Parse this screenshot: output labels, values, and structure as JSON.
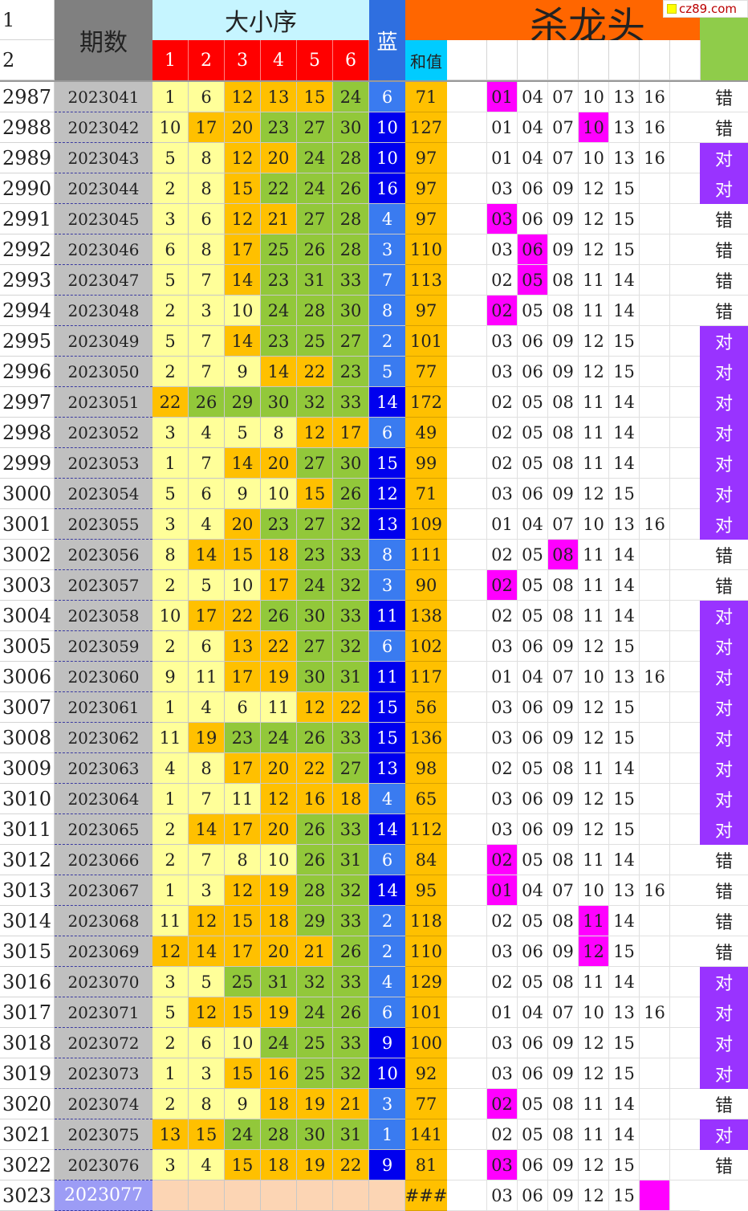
{
  "header": {
    "row1_label": "1",
    "row2_label": "2",
    "period_label": "期数",
    "red_group_label": "大小序",
    "red_positions": [
      "1",
      "2",
      "3",
      "4",
      "5",
      "6"
    ],
    "blue_label": "蓝",
    "sum_label": "和值",
    "kill_label": "杀龙头",
    "watermark": "cz89.com"
  },
  "colors": {
    "light_yellow": "#ffff99",
    "orange": "#ffc000",
    "green": "#92c83a",
    "blue_light": "#3a7bf0",
    "blue_dark": "#0000ee",
    "magenta": "#ff00ff",
    "purple": "#9933ff",
    "header_cyan": "#c6f5ff",
    "header_red": "#ff0000",
    "header_orange": "#ff6600",
    "header_green": "#8fcc4a"
  },
  "rows": [
    {
      "idx": "2987",
      "period": "2023041",
      "reds": [
        "1",
        "6",
        "12",
        "13",
        "15",
        "24"
      ],
      "bg": [
        "y",
        "y",
        "o",
        "o",
        "o",
        "g"
      ],
      "blue": "6",
      "bb": "l",
      "sum": "71",
      "kill": [
        "01",
        "04",
        "07",
        "10",
        "13",
        "16"
      ],
      "hl": [
        0
      ],
      "result": "错",
      "ok": false
    },
    {
      "idx": "2988",
      "period": "2023042",
      "reds": [
        "10",
        "17",
        "20",
        "23",
        "27",
        "30"
      ],
      "bg": [
        "y",
        "o",
        "o",
        "g",
        "g",
        "g"
      ],
      "blue": "10",
      "bb": "d",
      "sum": "127",
      "kill": [
        "01",
        "04",
        "07",
        "10",
        "13",
        "16"
      ],
      "hl": [
        3
      ],
      "result": "错",
      "ok": false
    },
    {
      "idx": "2989",
      "period": "2023043",
      "reds": [
        "5",
        "8",
        "12",
        "20",
        "24",
        "28"
      ],
      "bg": [
        "y",
        "y",
        "o",
        "o",
        "g",
        "g"
      ],
      "blue": "10",
      "bb": "d",
      "sum": "97",
      "kill": [
        "01",
        "04",
        "07",
        "10",
        "13",
        "16"
      ],
      "hl": [],
      "result": "对",
      "ok": true
    },
    {
      "idx": "2990",
      "period": "2023044",
      "reds": [
        "2",
        "8",
        "15",
        "22",
        "24",
        "26"
      ],
      "bg": [
        "y",
        "y",
        "o",
        "g",
        "g",
        "g"
      ],
      "blue": "16",
      "bb": "d",
      "sum": "97",
      "kill": [
        "03",
        "06",
        "09",
        "12",
        "15",
        ""
      ],
      "hl": [],
      "result": "对",
      "ok": true
    },
    {
      "idx": "2991",
      "period": "2023045",
      "reds": [
        "3",
        "6",
        "12",
        "21",
        "27",
        "28"
      ],
      "bg": [
        "y",
        "y",
        "o",
        "o",
        "g",
        "g"
      ],
      "blue": "4",
      "bb": "l",
      "sum": "97",
      "kill": [
        "03",
        "06",
        "09",
        "12",
        "15",
        ""
      ],
      "hl": [
        0
      ],
      "result": "错",
      "ok": false
    },
    {
      "idx": "2992",
      "period": "2023046",
      "reds": [
        "6",
        "8",
        "17",
        "25",
        "26",
        "28"
      ],
      "bg": [
        "y",
        "y",
        "o",
        "g",
        "g",
        "g"
      ],
      "blue": "3",
      "bb": "l",
      "sum": "110",
      "kill": [
        "03",
        "06",
        "09",
        "12",
        "15",
        ""
      ],
      "hl": [
        1
      ],
      "result": "错",
      "ok": false
    },
    {
      "idx": "2993",
      "period": "2023047",
      "reds": [
        "5",
        "7",
        "14",
        "23",
        "31",
        "33"
      ],
      "bg": [
        "y",
        "y",
        "o",
        "g",
        "g",
        "g"
      ],
      "blue": "7",
      "bb": "l",
      "sum": "113",
      "kill": [
        "02",
        "05",
        "08",
        "11",
        "14",
        ""
      ],
      "hl": [
        1
      ],
      "result": "错",
      "ok": false
    },
    {
      "idx": "2994",
      "period": "2023048",
      "reds": [
        "2",
        "3",
        "10",
        "24",
        "28",
        "30"
      ],
      "bg": [
        "y",
        "y",
        "y",
        "g",
        "g",
        "g"
      ],
      "blue": "8",
      "bb": "l",
      "sum": "97",
      "kill": [
        "02",
        "05",
        "08",
        "11",
        "14",
        ""
      ],
      "hl": [
        0
      ],
      "result": "错",
      "ok": false
    },
    {
      "idx": "2995",
      "period": "2023049",
      "reds": [
        "5",
        "7",
        "14",
        "23",
        "25",
        "27"
      ],
      "bg": [
        "y",
        "y",
        "o",
        "g",
        "g",
        "g"
      ],
      "blue": "2",
      "bb": "l",
      "sum": "101",
      "kill": [
        "03",
        "06",
        "09",
        "12",
        "15",
        ""
      ],
      "hl": [],
      "result": "对",
      "ok": true
    },
    {
      "idx": "2996",
      "period": "2023050",
      "reds": [
        "2",
        "7",
        "9",
        "14",
        "22",
        "23"
      ],
      "bg": [
        "y",
        "y",
        "y",
        "o",
        "o",
        "g"
      ],
      "blue": "5",
      "bb": "l",
      "sum": "77",
      "kill": [
        "03",
        "06",
        "09",
        "12",
        "15",
        ""
      ],
      "hl": [],
      "result": "对",
      "ok": true
    },
    {
      "idx": "2997",
      "period": "2023051",
      "reds": [
        "22",
        "26",
        "29",
        "30",
        "32",
        "33"
      ],
      "bg": [
        "o",
        "g",
        "g",
        "g",
        "g",
        "g"
      ],
      "blue": "14",
      "bb": "d",
      "sum": "172",
      "kill": [
        "02",
        "05",
        "08",
        "11",
        "14",
        ""
      ],
      "hl": [],
      "result": "对",
      "ok": true
    },
    {
      "idx": "2998",
      "period": "2023052",
      "reds": [
        "3",
        "4",
        "5",
        "8",
        "12",
        "17"
      ],
      "bg": [
        "y",
        "y",
        "y",
        "y",
        "o",
        "o"
      ],
      "blue": "6",
      "bb": "l",
      "sum": "49",
      "kill": [
        "02",
        "05",
        "08",
        "11",
        "14",
        ""
      ],
      "hl": [],
      "result": "对",
      "ok": true
    },
    {
      "idx": "2999",
      "period": "2023053",
      "reds": [
        "1",
        "7",
        "14",
        "20",
        "27",
        "30"
      ],
      "bg": [
        "y",
        "y",
        "o",
        "o",
        "g",
        "g"
      ],
      "blue": "15",
      "bb": "d",
      "sum": "99",
      "kill": [
        "02",
        "05",
        "08",
        "11",
        "14",
        ""
      ],
      "hl": [],
      "result": "对",
      "ok": true
    },
    {
      "idx": "3000",
      "period": "2023054",
      "reds": [
        "5",
        "6",
        "9",
        "10",
        "15",
        "26"
      ],
      "bg": [
        "y",
        "y",
        "y",
        "y",
        "o",
        "g"
      ],
      "blue": "12",
      "bb": "d",
      "sum": "71",
      "kill": [
        "03",
        "06",
        "09",
        "12",
        "15",
        ""
      ],
      "hl": [],
      "result": "对",
      "ok": true
    },
    {
      "idx": "3001",
      "period": "2023055",
      "reds": [
        "3",
        "4",
        "20",
        "23",
        "27",
        "32"
      ],
      "bg": [
        "y",
        "y",
        "o",
        "g",
        "g",
        "g"
      ],
      "blue": "13",
      "bb": "d",
      "sum": "109",
      "kill": [
        "01",
        "04",
        "07",
        "10",
        "13",
        "16"
      ],
      "hl": [],
      "result": "对",
      "ok": true
    },
    {
      "idx": "3002",
      "period": "2023056",
      "reds": [
        "8",
        "14",
        "15",
        "18",
        "23",
        "33"
      ],
      "bg": [
        "y",
        "o",
        "o",
        "o",
        "g",
        "g"
      ],
      "blue": "8",
      "bb": "l",
      "sum": "111",
      "kill": [
        "02",
        "05",
        "08",
        "11",
        "14",
        ""
      ],
      "hl": [
        2
      ],
      "result": "错",
      "ok": false
    },
    {
      "idx": "3003",
      "period": "2023057",
      "reds": [
        "2",
        "5",
        "10",
        "17",
        "24",
        "32"
      ],
      "bg": [
        "y",
        "y",
        "y",
        "o",
        "g",
        "g"
      ],
      "blue": "3",
      "bb": "l",
      "sum": "90",
      "kill": [
        "02",
        "05",
        "08",
        "11",
        "14",
        ""
      ],
      "hl": [
        0
      ],
      "result": "错",
      "ok": false
    },
    {
      "idx": "3004",
      "period": "2023058",
      "reds": [
        "10",
        "17",
        "22",
        "26",
        "30",
        "33"
      ],
      "bg": [
        "y",
        "o",
        "o",
        "g",
        "g",
        "g"
      ],
      "blue": "11",
      "bb": "d",
      "sum": "138",
      "kill": [
        "02",
        "05",
        "08",
        "11",
        "14",
        ""
      ],
      "hl": [],
      "result": "对",
      "ok": true
    },
    {
      "idx": "3005",
      "period": "2023059",
      "reds": [
        "2",
        "6",
        "13",
        "22",
        "27",
        "32"
      ],
      "bg": [
        "y",
        "y",
        "o",
        "o",
        "g",
        "g"
      ],
      "blue": "6",
      "bb": "l",
      "sum": "102",
      "kill": [
        "03",
        "06",
        "09",
        "12",
        "15",
        ""
      ],
      "hl": [],
      "result": "对",
      "ok": true
    },
    {
      "idx": "3006",
      "period": "2023060",
      "reds": [
        "9",
        "11",
        "17",
        "19",
        "30",
        "31"
      ],
      "bg": [
        "y",
        "y",
        "o",
        "o",
        "g",
        "g"
      ],
      "blue": "11",
      "bb": "d",
      "sum": "117",
      "kill": [
        "01",
        "04",
        "07",
        "10",
        "13",
        "16"
      ],
      "hl": [],
      "result": "对",
      "ok": true
    },
    {
      "idx": "3007",
      "period": "2023061",
      "reds": [
        "1",
        "4",
        "6",
        "11",
        "12",
        "22"
      ],
      "bg": [
        "y",
        "y",
        "y",
        "y",
        "o",
        "o"
      ],
      "blue": "15",
      "bb": "d",
      "sum": "56",
      "kill": [
        "03",
        "06",
        "09",
        "12",
        "15",
        ""
      ],
      "hl": [],
      "result": "对",
      "ok": true
    },
    {
      "idx": "3008",
      "period": "2023062",
      "reds": [
        "11",
        "19",
        "23",
        "24",
        "26",
        "33"
      ],
      "bg": [
        "y",
        "o",
        "g",
        "g",
        "g",
        "g"
      ],
      "blue": "15",
      "bb": "d",
      "sum": "136",
      "kill": [
        "03",
        "06",
        "09",
        "12",
        "15",
        ""
      ],
      "hl": [],
      "result": "对",
      "ok": true
    },
    {
      "idx": "3009",
      "period": "2023063",
      "reds": [
        "4",
        "8",
        "17",
        "20",
        "22",
        "27"
      ],
      "bg": [
        "y",
        "y",
        "o",
        "o",
        "o",
        "g"
      ],
      "blue": "13",
      "bb": "d",
      "sum": "98",
      "kill": [
        "02",
        "05",
        "08",
        "11",
        "14",
        ""
      ],
      "hl": [],
      "result": "对",
      "ok": true
    },
    {
      "idx": "3010",
      "period": "2023064",
      "reds": [
        "1",
        "7",
        "11",
        "12",
        "16",
        "18"
      ],
      "bg": [
        "y",
        "y",
        "y",
        "o",
        "o",
        "o"
      ],
      "blue": "4",
      "bb": "l",
      "sum": "65",
      "kill": [
        "03",
        "06",
        "09",
        "12",
        "15",
        ""
      ],
      "hl": [],
      "result": "对",
      "ok": true
    },
    {
      "idx": "3011",
      "period": "2023065",
      "reds": [
        "2",
        "14",
        "17",
        "20",
        "26",
        "33"
      ],
      "bg": [
        "y",
        "o",
        "o",
        "o",
        "g",
        "g"
      ],
      "blue": "14",
      "bb": "d",
      "sum": "112",
      "kill": [
        "03",
        "06",
        "09",
        "12",
        "15",
        ""
      ],
      "hl": [],
      "result": "对",
      "ok": true
    },
    {
      "idx": "3012",
      "period": "2023066",
      "reds": [
        "2",
        "7",
        "8",
        "10",
        "26",
        "31"
      ],
      "bg": [
        "y",
        "y",
        "y",
        "y",
        "g",
        "g"
      ],
      "blue": "6",
      "bb": "l",
      "sum": "84",
      "kill": [
        "02",
        "05",
        "08",
        "11",
        "14",
        ""
      ],
      "hl": [
        0
      ],
      "result": "错",
      "ok": false
    },
    {
      "idx": "3013",
      "period": "2023067",
      "reds": [
        "1",
        "3",
        "12",
        "19",
        "28",
        "32"
      ],
      "bg": [
        "y",
        "y",
        "o",
        "o",
        "g",
        "g"
      ],
      "blue": "14",
      "bb": "d",
      "sum": "95",
      "kill": [
        "01",
        "04",
        "07",
        "10",
        "13",
        "16"
      ],
      "hl": [
        0
      ],
      "result": "错",
      "ok": false
    },
    {
      "idx": "3014",
      "period": "2023068",
      "reds": [
        "11",
        "12",
        "15",
        "18",
        "29",
        "33"
      ],
      "bg": [
        "y",
        "o",
        "o",
        "o",
        "g",
        "g"
      ],
      "blue": "2",
      "bb": "l",
      "sum": "118",
      "kill": [
        "02",
        "05",
        "08",
        "11",
        "14",
        ""
      ],
      "hl": [
        3
      ],
      "result": "错",
      "ok": false
    },
    {
      "idx": "3015",
      "period": "2023069",
      "reds": [
        "12",
        "14",
        "17",
        "20",
        "21",
        "26"
      ],
      "bg": [
        "o",
        "o",
        "o",
        "o",
        "o",
        "g"
      ],
      "blue": "2",
      "bb": "l",
      "sum": "110",
      "kill": [
        "03",
        "06",
        "09",
        "12",
        "15",
        ""
      ],
      "hl": [
        3
      ],
      "result": "错",
      "ok": false
    },
    {
      "idx": "3016",
      "period": "2023070",
      "reds": [
        "3",
        "5",
        "25",
        "31",
        "32",
        "33"
      ],
      "bg": [
        "y",
        "y",
        "g",
        "g",
        "g",
        "g"
      ],
      "blue": "4",
      "bb": "l",
      "sum": "129",
      "kill": [
        "02",
        "05",
        "08",
        "11",
        "14",
        ""
      ],
      "hl": [],
      "result": "对",
      "ok": true
    },
    {
      "idx": "3017",
      "period": "2023071",
      "reds": [
        "5",
        "12",
        "15",
        "19",
        "24",
        "26"
      ],
      "bg": [
        "y",
        "o",
        "o",
        "o",
        "g",
        "g"
      ],
      "blue": "6",
      "bb": "l",
      "sum": "101",
      "kill": [
        "01",
        "04",
        "07",
        "10",
        "13",
        "16"
      ],
      "hl": [],
      "result": "对",
      "ok": true
    },
    {
      "idx": "3018",
      "period": "2023072",
      "reds": [
        "2",
        "6",
        "10",
        "24",
        "25",
        "33"
      ],
      "bg": [
        "y",
        "y",
        "y",
        "g",
        "g",
        "g"
      ],
      "blue": "9",
      "bb": "d",
      "sum": "100",
      "kill": [
        "03",
        "06",
        "09",
        "12",
        "15",
        ""
      ],
      "hl": [],
      "result": "对",
      "ok": true
    },
    {
      "idx": "3019",
      "period": "2023073",
      "reds": [
        "1",
        "3",
        "15",
        "16",
        "25",
        "32"
      ],
      "bg": [
        "y",
        "y",
        "o",
        "o",
        "g",
        "g"
      ],
      "blue": "10",
      "bb": "d",
      "sum": "92",
      "kill": [
        "03",
        "06",
        "09",
        "12",
        "15",
        ""
      ],
      "hl": [],
      "result": "对",
      "ok": true
    },
    {
      "idx": "3020",
      "period": "2023074",
      "reds": [
        "2",
        "8",
        "9",
        "18",
        "19",
        "21"
      ],
      "bg": [
        "y",
        "y",
        "y",
        "o",
        "o",
        "o"
      ],
      "blue": "3",
      "bb": "l",
      "sum": "77",
      "kill": [
        "02",
        "05",
        "08",
        "11",
        "14",
        ""
      ],
      "hl": [
        0
      ],
      "result": "错",
      "ok": false
    },
    {
      "idx": "3021",
      "period": "2023075",
      "reds": [
        "13",
        "15",
        "24",
        "28",
        "30",
        "31"
      ],
      "bg": [
        "o",
        "o",
        "g",
        "g",
        "g",
        "g"
      ],
      "blue": "1",
      "bb": "l",
      "sum": "141",
      "kill": [
        "02",
        "05",
        "08",
        "11",
        "14",
        ""
      ],
      "hl": [],
      "result": "对",
      "ok": true
    },
    {
      "idx": "3022",
      "period": "2023076",
      "reds": [
        "3",
        "4",
        "15",
        "18",
        "19",
        "22"
      ],
      "bg": [
        "y",
        "y",
        "o",
        "o",
        "o",
        "o"
      ],
      "blue": "9",
      "bb": "d",
      "sum": "81",
      "kill": [
        "03",
        "06",
        "09",
        "12",
        "15",
        ""
      ],
      "hl": [
        0
      ],
      "result": "错",
      "ok": false
    }
  ],
  "last_row": {
    "idx": "3023",
    "period": "2023077",
    "sum": "###",
    "kill": [
      "03",
      "06",
      "09",
      "12",
      "15",
      ""
    ],
    "marker_col": 5
  }
}
